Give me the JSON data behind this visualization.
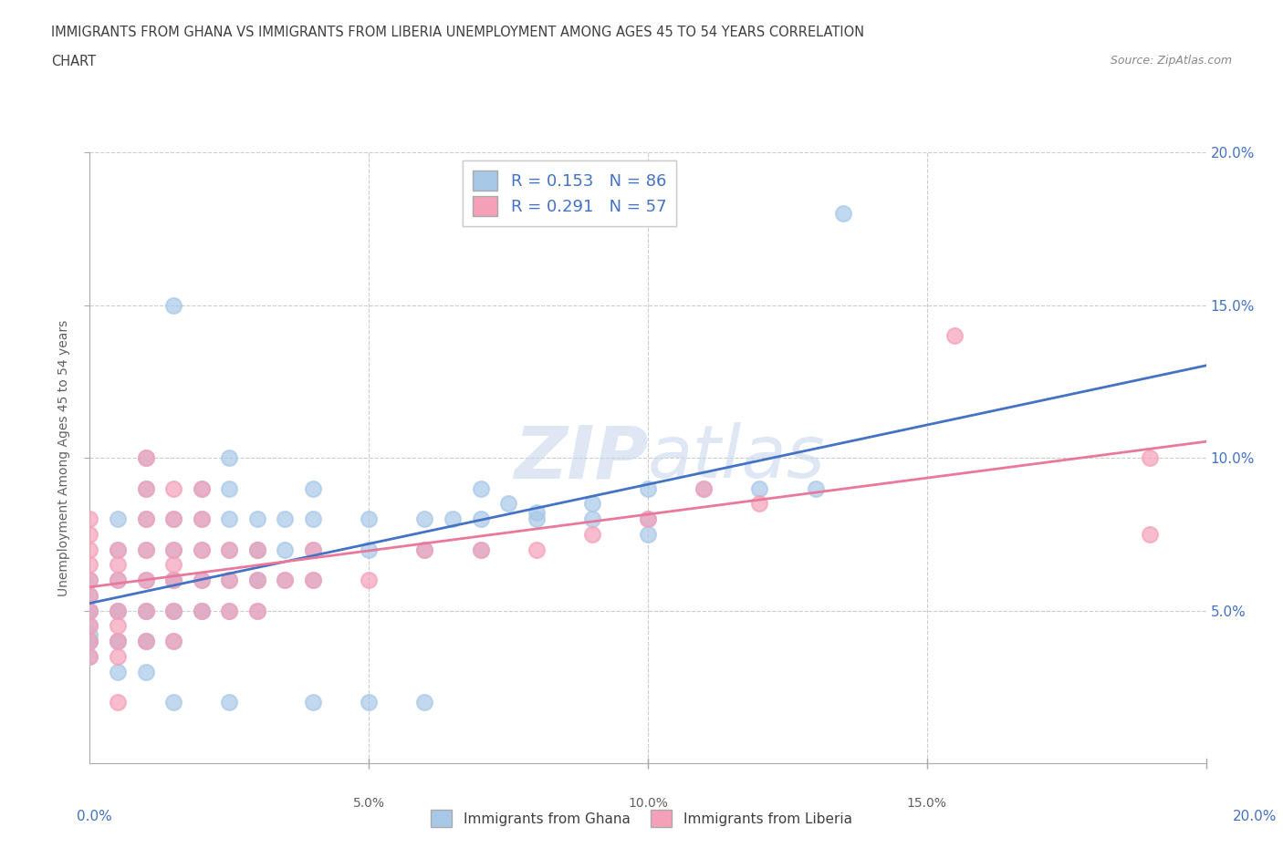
{
  "title_line1": "IMMIGRANTS FROM GHANA VS IMMIGRANTS FROM LIBERIA UNEMPLOYMENT AMONG AGES 45 TO 54 YEARS CORRELATION",
  "title_line2": "CHART",
  "source_text": "Source: ZipAtlas.com",
  "ylabel": "Unemployment Among Ages 45 to 54 years",
  "xlim": [
    0.0,
    0.2
  ],
  "ylim": [
    0.0,
    0.2
  ],
  "xticks": [
    0.0,
    0.025,
    0.05,
    0.075,
    0.1,
    0.125,
    0.15,
    0.175,
    0.2
  ],
  "yticks": [
    0.05,
    0.1,
    0.15,
    0.2
  ],
  "ghana_color": "#a8c8e8",
  "liberia_color": "#f4a0b8",
  "ghana_R": 0.153,
  "ghana_N": 86,
  "liberia_R": 0.291,
  "liberia_N": 57,
  "ghana_line_color": "#4472c4",
  "liberia_line_color": "#e8799a",
  "watermark_zip": "ZIP",
  "watermark_atlas": "atlas",
  "axis_label_color": "#4472c4",
  "title_color": "#404040",
  "source_color": "#888888",
  "grid_color": "#cccccc",
  "ghana_scatter": [
    [
      0.0,
      0.04
    ],
    [
      0.0,
      0.04
    ],
    [
      0.0,
      0.05
    ],
    [
      0.0,
      0.055
    ],
    [
      0.0,
      0.06
    ],
    [
      0.0,
      0.04
    ],
    [
      0.0,
      0.05
    ],
    [
      0.0,
      0.045
    ],
    [
      0.0,
      0.035
    ],
    [
      0.0,
      0.042
    ],
    [
      0.005,
      0.04
    ],
    [
      0.005,
      0.05
    ],
    [
      0.005,
      0.06
    ],
    [
      0.005,
      0.07
    ],
    [
      0.005,
      0.08
    ],
    [
      0.005,
      0.05
    ],
    [
      0.005,
      0.04
    ],
    [
      0.005,
      0.03
    ],
    [
      0.01,
      0.04
    ],
    [
      0.01,
      0.05
    ],
    [
      0.01,
      0.06
    ],
    [
      0.01,
      0.07
    ],
    [
      0.01,
      0.08
    ],
    [
      0.01,
      0.09
    ],
    [
      0.01,
      0.1
    ],
    [
      0.01,
      0.03
    ],
    [
      0.01,
      0.04
    ],
    [
      0.01,
      0.05
    ],
    [
      0.015,
      0.04
    ],
    [
      0.015,
      0.05
    ],
    [
      0.015,
      0.06
    ],
    [
      0.015,
      0.07
    ],
    [
      0.015,
      0.08
    ],
    [
      0.015,
      0.05
    ],
    [
      0.015,
      0.06
    ],
    [
      0.015,
      0.15
    ],
    [
      0.02,
      0.05
    ],
    [
      0.02,
      0.06
    ],
    [
      0.02,
      0.07
    ],
    [
      0.02,
      0.08
    ],
    [
      0.02,
      0.09
    ],
    [
      0.02,
      0.05
    ],
    [
      0.025,
      0.05
    ],
    [
      0.025,
      0.06
    ],
    [
      0.025,
      0.07
    ],
    [
      0.025,
      0.08
    ],
    [
      0.025,
      0.09
    ],
    [
      0.025,
      0.1
    ],
    [
      0.03,
      0.05
    ],
    [
      0.03,
      0.06
    ],
    [
      0.03,
      0.07
    ],
    [
      0.03,
      0.08
    ],
    [
      0.03,
      0.07
    ],
    [
      0.03,
      0.06
    ],
    [
      0.035,
      0.06
    ],
    [
      0.035,
      0.07
    ],
    [
      0.035,
      0.08
    ],
    [
      0.04,
      0.06
    ],
    [
      0.04,
      0.07
    ],
    [
      0.04,
      0.08
    ],
    [
      0.04,
      0.09
    ],
    [
      0.05,
      0.07
    ],
    [
      0.05,
      0.08
    ],
    [
      0.06,
      0.07
    ],
    [
      0.06,
      0.08
    ],
    [
      0.07,
      0.07
    ],
    [
      0.07,
      0.08
    ],
    [
      0.07,
      0.09
    ],
    [
      0.08,
      0.08
    ],
    [
      0.08,
      0.082
    ],
    [
      0.09,
      0.08
    ],
    [
      0.1,
      0.08
    ],
    [
      0.1,
      0.09
    ],
    [
      0.11,
      0.09
    ],
    [
      0.12,
      0.09
    ],
    [
      0.13,
      0.09
    ],
    [
      0.135,
      0.18
    ],
    [
      0.015,
      0.02
    ],
    [
      0.025,
      0.02
    ],
    [
      0.04,
      0.02
    ],
    [
      0.05,
      0.02
    ],
    [
      0.06,
      0.02
    ],
    [
      0.065,
      0.08
    ],
    [
      0.075,
      0.085
    ],
    [
      0.09,
      0.085
    ],
    [
      0.1,
      0.075
    ]
  ],
  "liberia_scatter": [
    [
      0.0,
      0.035
    ],
    [
      0.0,
      0.04
    ],
    [
      0.0,
      0.045
    ],
    [
      0.0,
      0.05
    ],
    [
      0.0,
      0.055
    ],
    [
      0.0,
      0.06
    ],
    [
      0.0,
      0.065
    ],
    [
      0.0,
      0.07
    ],
    [
      0.0,
      0.075
    ],
    [
      0.0,
      0.08
    ],
    [
      0.005,
      0.035
    ],
    [
      0.005,
      0.04
    ],
    [
      0.005,
      0.045
    ],
    [
      0.005,
      0.05
    ],
    [
      0.005,
      0.06
    ],
    [
      0.005,
      0.065
    ],
    [
      0.005,
      0.07
    ],
    [
      0.005,
      0.02
    ],
    [
      0.01,
      0.04
    ],
    [
      0.01,
      0.05
    ],
    [
      0.01,
      0.06
    ],
    [
      0.01,
      0.07
    ],
    [
      0.01,
      0.08
    ],
    [
      0.01,
      0.09
    ],
    [
      0.01,
      0.1
    ],
    [
      0.015,
      0.04
    ],
    [
      0.015,
      0.05
    ],
    [
      0.015,
      0.06
    ],
    [
      0.015,
      0.065
    ],
    [
      0.015,
      0.07
    ],
    [
      0.015,
      0.08
    ],
    [
      0.015,
      0.09
    ],
    [
      0.02,
      0.05
    ],
    [
      0.02,
      0.06
    ],
    [
      0.02,
      0.07
    ],
    [
      0.02,
      0.08
    ],
    [
      0.02,
      0.09
    ],
    [
      0.025,
      0.05
    ],
    [
      0.025,
      0.06
    ],
    [
      0.025,
      0.07
    ],
    [
      0.03,
      0.05
    ],
    [
      0.03,
      0.06
    ],
    [
      0.03,
      0.07
    ],
    [
      0.035,
      0.06
    ],
    [
      0.04,
      0.06
    ],
    [
      0.04,
      0.07
    ],
    [
      0.05,
      0.06
    ],
    [
      0.06,
      0.07
    ],
    [
      0.07,
      0.07
    ],
    [
      0.08,
      0.07
    ],
    [
      0.09,
      0.075
    ],
    [
      0.1,
      0.08
    ],
    [
      0.11,
      0.09
    ],
    [
      0.12,
      0.085
    ],
    [
      0.155,
      0.14
    ],
    [
      0.19,
      0.1
    ],
    [
      0.19,
      0.075
    ]
  ]
}
